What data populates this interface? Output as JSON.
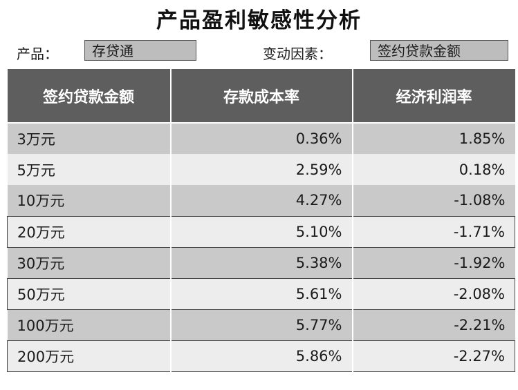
{
  "title": "产品盈利敏感性分析",
  "filters": {
    "product_label": "产品：",
    "product_value": "存贷通",
    "factor_label": "变动因素：",
    "factor_value": "签约贷款金额"
  },
  "chart_data": {
    "type": "table",
    "columns": [
      "签约贷款金额",
      "存款成本率",
      "经济利润率"
    ],
    "rows": [
      [
        "3万元",
        "0.36%",
        "1.85%"
      ],
      [
        "5万元",
        "2.59%",
        "0.18%"
      ],
      [
        "10万元",
        "4.27%",
        "-1.08%"
      ],
      [
        "20万元",
        "5.10%",
        "-1.71%"
      ],
      [
        "30万元",
        "5.38%",
        "-1.92%"
      ],
      [
        "50万元",
        "5.61%",
        "-2.08%"
      ],
      [
        "100万元",
        "5.77%",
        "-2.21%"
      ],
      [
        "200万元",
        "5.86%",
        "-2.27%"
      ]
    ],
    "boxed_rows": [
      3,
      5,
      7
    ],
    "colors": {
      "header": "#5e5e5e",
      "row_dark": "#c9c9c9",
      "row_light": "#ededed"
    }
  }
}
